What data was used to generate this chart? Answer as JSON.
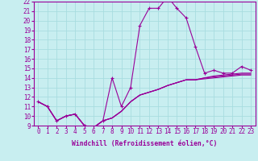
{
  "xlabel": "Windchill (Refroidissement éolien,°C)",
  "bg_color": "#c8eef0",
  "line_color": "#990099",
  "grid_color": "#a8dde0",
  "x_values": [
    0,
    1,
    2,
    3,
    4,
    5,
    6,
    7,
    8,
    9,
    10,
    11,
    12,
    13,
    14,
    15,
    16,
    17,
    18,
    19,
    20,
    21,
    22,
    23
  ],
  "main_series": [
    11.5,
    11.0,
    9.5,
    10.0,
    10.2,
    9.0,
    8.8,
    9.5,
    14.0,
    11.0,
    13.0,
    19.5,
    21.3,
    21.3,
    22.5,
    21.3,
    20.3,
    17.3,
    14.5,
    14.8,
    14.5,
    14.5,
    15.2,
    14.8
  ],
  "flat_series1": [
    11.5,
    11.0,
    9.5,
    10.0,
    10.2,
    9.0,
    8.8,
    9.5,
    9.8,
    10.5,
    11.5,
    12.2,
    12.5,
    12.8,
    13.2,
    13.5,
    13.8,
    13.8,
    14.0,
    14.2,
    14.3,
    14.4,
    14.5,
    14.5
  ],
  "flat_series2": [
    11.5,
    11.0,
    9.5,
    10.0,
    10.2,
    9.0,
    8.8,
    9.5,
    9.8,
    10.5,
    11.5,
    12.2,
    12.5,
    12.8,
    13.2,
    13.5,
    13.8,
    13.8,
    14.0,
    14.1,
    14.2,
    14.3,
    14.4,
    14.4
  ],
  "flat_series3": [
    11.5,
    11.0,
    9.5,
    10.0,
    10.2,
    9.0,
    8.8,
    9.5,
    9.8,
    10.5,
    11.5,
    12.2,
    12.5,
    12.8,
    13.2,
    13.5,
    13.8,
    13.8,
    13.9,
    14.0,
    14.1,
    14.2,
    14.3,
    14.3
  ],
  "ylim": [
    9,
    22
  ],
  "yticks": [
    9,
    10,
    11,
    12,
    13,
    14,
    15,
    16,
    17,
    18,
    19,
    20,
    21,
    22
  ],
  "xticks": [
    0,
    1,
    2,
    3,
    4,
    5,
    6,
    7,
    8,
    9,
    10,
    11,
    12,
    13,
    14,
    15,
    16,
    17,
    18,
    19,
    20,
    21,
    22,
    23
  ],
  "tick_fontsize": 5.5,
  "xlabel_fontsize": 5.8
}
